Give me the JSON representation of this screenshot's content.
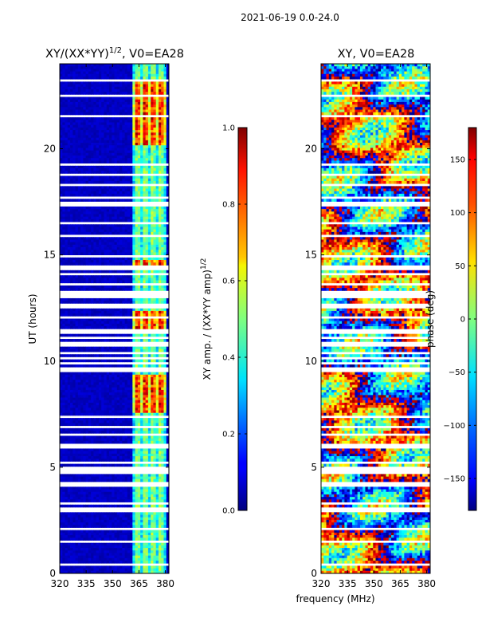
{
  "figure": {
    "suptitle": "2021-06-19 0.0-24.0",
    "xlabel": "frequency (MHz)"
  },
  "chart_data": [
    {
      "type": "heatmap",
      "title": "XY/(XX*YY)^{1/2}, V0=EA28",
      "title_main": "XY/(XX*YY)",
      "title_exp": "1/2",
      "title_rest": ", V0=EA28",
      "xlabel": "",
      "ylabel": "UT (hours)",
      "xlim": [
        320,
        382
      ],
      "ylim": [
        0,
        24
      ],
      "xticks": [
        320,
        335,
        350,
        365,
        380
      ],
      "yticks": [
        0,
        5,
        10,
        15,
        20
      ],
      "colormap": "jet",
      "bright_band_mhz": [
        362,
        381
      ],
      "strong_rfi_hours": [
        [
          7.6,
          9.3
        ],
        [
          11.5,
          12.3
        ],
        [
          14.4,
          14.7
        ],
        [
          20.2,
          23.3
        ]
      ],
      "colorbar": {
        "label_main": "XY amp. / (XX*YY amp)",
        "label_exp": "1/2",
        "range": [
          0.0,
          1.0
        ],
        "ticks": [
          "0.0",
          "0.2",
          "0.4",
          "0.6",
          "0.8",
          "1.0"
        ]
      }
    },
    {
      "type": "heatmap",
      "title": "XY, V0=EA28",
      "xlabel": "frequency (MHz)",
      "ylabel": "",
      "xlim": [
        320,
        382
      ],
      "ylim": [
        0,
        24
      ],
      "xticks": [
        320,
        335,
        350,
        365,
        380
      ],
      "yticks": [
        0,
        5,
        10,
        15,
        20
      ],
      "colormap": "jet",
      "colorbar": {
        "label": "phase (deg)",
        "range": [
          -180,
          180
        ],
        "ticks": [
          "−150",
          "−100",
          "−50",
          "0",
          "50",
          "100",
          "150"
        ]
      }
    }
  ],
  "flagged_hours": [
    0.4,
    1.5,
    2.1,
    3.0,
    3.3,
    4.1,
    4.3,
    4.8,
    5.0,
    5.2,
    6.0,
    6.5,
    6.9,
    7.4,
    9.5,
    9.7,
    9.9,
    10.1,
    10.4,
    10.7,
    10.9,
    11.1,
    11.4,
    12.1,
    12.6,
    13.0,
    13.2,
    13.6,
    14.1,
    14.4,
    14.9,
    15.9,
    16.5,
    17.4,
    17.7,
    18.3,
    18.8,
    19.3,
    21.5,
    22.5,
    23.2
  ]
}
